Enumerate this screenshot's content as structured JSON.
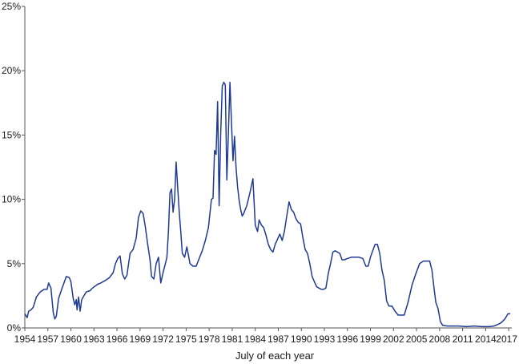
{
  "chart_data": {
    "type": "line",
    "title": "",
    "xlabel": "July of each year",
    "ylabel": "",
    "xlim": [
      1954.5,
      2017.9
    ],
    "ylim": [
      0,
      25
    ],
    "grid": false,
    "legend": "none",
    "line_color": "#1f3a93",
    "axis_color": "#555555",
    "y_ticks": [
      0,
      5,
      10,
      15,
      20,
      25
    ],
    "y_tick_labels": [
      "0%",
      "5%",
      "10%",
      "15%",
      "20%",
      "25%"
    ],
    "x_ticks": [
      1954,
      1957,
      1960,
      1963,
      1966,
      1969,
      1972,
      1975,
      1978,
      1981,
      1984,
      1987,
      1990,
      1993,
      1996,
      1999,
      2002,
      2005,
      2008,
      2011,
      2014,
      2017
    ],
    "x_tick_labels": [
      "1954",
      "1957",
      "1960",
      "1963",
      "1966",
      "1969",
      "1972",
      "1975",
      "1978",
      "1981",
      "1984",
      "1987",
      "1990",
      "1993",
      "1996",
      "1999",
      "2002",
      "2005",
      "2008",
      "2011",
      "2014",
      "2017"
    ],
    "series": [
      {
        "x": [
          1954.5,
          1954.6,
          1954.8,
          1955.0,
          1955.3,
          1955.6,
          1956.0,
          1956.5,
          1957.0,
          1957.4,
          1957.6,
          1957.9,
          1958.2,
          1958.4,
          1958.6,
          1958.9,
          1959.3,
          1959.6,
          1959.9,
          1960.3,
          1960.5,
          1960.8,
          1961.0,
          1961.2,
          1961.3,
          1961.5,
          1961.7,
          1961.9,
          1962.2,
          1962.5,
          1963.0,
          1963.3,
          1964.0,
          1964.4,
          1965.0,
          1965.5,
          1966.0,
          1966.3,
          1966.6,
          1966.9,
          1967.2,
          1967.5,
          1967.8,
          1968.2,
          1968.6,
          1969.0,
          1969.3,
          1969.6,
          1969.9,
          1970.2,
          1970.5,
          1970.8,
          1971.0,
          1971.3,
          1971.6,
          1971.9,
          1972.2,
          1972.5,
          1972.8,
          1973.0,
          1973.2,
          1973.4,
          1973.6,
          1973.8,
          1974.0,
          1974.2,
          1974.4,
          1974.6,
          1974.8,
          1975.0,
          1975.3,
          1975.6,
          1976.0,
          1976.4,
          1976.8,
          1977.2,
          1977.6,
          1978.0,
          1978.4,
          1978.8,
          1979.0,
          1979.2,
          1979.4,
          1979.6,
          1979.8,
          1980.0,
          1980.2,
          1980.4,
          1980.6,
          1980.8,
          1981.0,
          1981.2,
          1981.4,
          1981.6,
          1981.8,
          1982.0,
          1982.2,
          1982.4,
          1982.6,
          1982.8,
          1983.0,
          1983.4,
          1983.8,
          1984.2,
          1984.5,
          1984.8,
          1985.0,
          1985.3,
          1985.6,
          1985.9,
          1986.2,
          1986.5,
          1986.8,
          1987.1,
          1987.4,
          1987.7,
          1988.0,
          1988.3,
          1988.6,
          1988.9,
          1989.2,
          1989.5,
          1989.8,
          1990.1,
          1990.4,
          1990.7,
          1991.0,
          1991.3,
          1991.6,
          1991.9,
          1992.2,
          1992.5,
          1992.8,
          1993.1,
          1993.4,
          1993.7,
          1994.0,
          1994.3,
          1994.6,
          1994.9,
          1995.2,
          1995.5,
          1995.8,
          1996.1,
          1996.5,
          1997.0,
          1997.5,
          1998.0,
          1998.5,
          1998.9,
          1999.2,
          1999.5,
          1999.8,
          2000.1,
          2000.4,
          2000.7,
          2001.0,
          2001.3,
          2001.6,
          2001.9,
          2002.3,
          2002.7,
          2003.1,
          2003.5,
          2003.9,
          2004.4,
          2004.9,
          2005.4,
          2005.9,
          2006.4,
          2006.8,
          2007.2,
          2007.5,
          2007.8,
          2008.0,
          2008.3,
          2008.6,
          2008.9,
          2009.5,
          2010.0,
          2011.0,
          2012.0,
          2013.0,
          2014.0,
          2015.0,
          2015.6,
          2016.0,
          2016.5,
          2017.0,
          2017.4,
          2017.7
        ],
        "y": [
          1.1,
          1.0,
          0.8,
          1.3,
          1.4,
          1.6,
          2.4,
          2.8,
          3.0,
          3.0,
          3.5,
          3.1,
          1.2,
          0.7,
          0.9,
          2.3,
          3.0,
          3.5,
          4.0,
          3.9,
          3.6,
          2.3,
          1.8,
          2.2,
          1.4,
          2.4,
          1.3,
          2.2,
          2.5,
          2.8,
          2.9,
          3.1,
          3.4,
          3.5,
          3.7,
          3.9,
          4.3,
          5.0,
          5.4,
          5.6,
          4.2,
          3.8,
          4.1,
          5.8,
          6.1,
          7.0,
          8.6,
          9.1,
          8.9,
          7.8,
          6.5,
          5.3,
          4.0,
          3.8,
          5.0,
          5.5,
          3.5,
          4.3,
          5.0,
          5.5,
          7.5,
          10.5,
          10.8,
          9.0,
          10.0,
          12.9,
          11.0,
          9.0,
          7.5,
          5.8,
          5.5,
          6.3,
          5.0,
          4.8,
          4.8,
          5.4,
          6.0,
          6.8,
          7.8,
          10.0,
          10.1,
          13.8,
          13.5,
          17.6,
          9.5,
          15.0,
          18.8,
          19.1,
          18.9,
          11.5,
          15.0,
          19.1,
          16.0,
          13.0,
          14.9,
          12.5,
          11.0,
          9.9,
          9.2,
          8.7,
          8.9,
          9.5,
          10.5,
          11.6,
          8.0,
          7.5,
          8.4,
          8.0,
          7.8,
          7.2,
          6.5,
          6.1,
          5.9,
          6.5,
          6.9,
          7.3,
          6.8,
          7.5,
          8.7,
          9.8,
          9.2,
          9.0,
          8.5,
          8.2,
          8.1,
          7.0,
          6.1,
          5.8,
          5.0,
          4.0,
          3.6,
          3.2,
          3.1,
          3.0,
          3.0,
          3.1,
          4.2,
          5.0,
          5.9,
          6.0,
          5.9,
          5.8,
          5.3,
          5.3,
          5.4,
          5.5,
          5.5,
          5.5,
          5.4,
          4.8,
          4.8,
          5.5,
          6.0,
          6.5,
          6.5,
          5.8,
          4.5,
          3.7,
          2.1,
          1.7,
          1.7,
          1.3,
          1.0,
          1.0,
          1.0,
          2.0,
          3.3,
          4.2,
          5.0,
          5.2,
          5.2,
          5.2,
          4.5,
          3.0,
          2.0,
          1.5,
          0.5,
          0.2,
          0.15,
          0.15,
          0.15,
          0.1,
          0.15,
          0.1,
          0.1,
          0.15,
          0.25,
          0.4,
          0.7,
          1.1,
          1.1
        ]
      }
    ]
  }
}
